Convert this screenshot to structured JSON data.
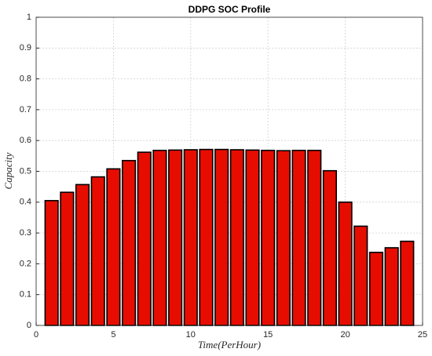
{
  "chart_data": {
    "type": "bar",
    "title": "DDPG SOC Profile",
    "x_label": "Time(PerHour)",
    "y_label": "Capacity",
    "x": [
      1,
      2,
      3,
      4,
      5,
      6,
      7,
      8,
      9,
      10,
      11,
      12,
      13,
      14,
      15,
      16,
      17,
      18,
      19,
      20,
      21,
      22,
      23,
      24
    ],
    "values": [
      0.405,
      0.432,
      0.457,
      0.482,
      0.508,
      0.535,
      0.562,
      0.568,
      0.569,
      0.57,
      0.571,
      0.571,
      0.57,
      0.569,
      0.568,
      0.567,
      0.568,
      0.568,
      0.502,
      0.4,
      0.322,
      0.237,
      0.252,
      0.273
    ],
    "color": "#e60d00",
    "edgecolor": "#000000",
    "xlim": [
      0,
      25
    ],
    "xticks": [
      0,
      5,
      10,
      15,
      20,
      25
    ],
    "ylim": [
      0,
      1
    ],
    "yticks": [
      0,
      0.1,
      0.2,
      0.3,
      0.4,
      0.5,
      0.6,
      0.7,
      0.8,
      0.9,
      1
    ],
    "grid": true
  }
}
